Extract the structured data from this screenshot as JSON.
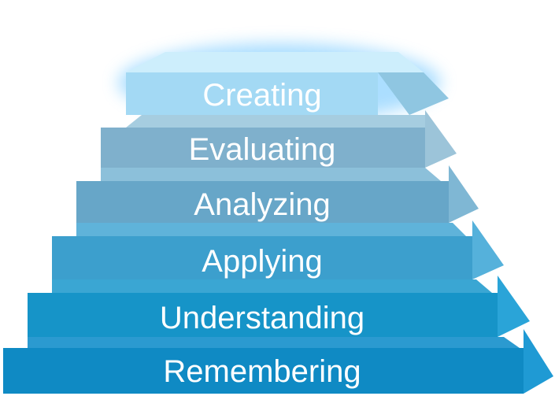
{
  "pyramid": {
    "levels": [
      {
        "label": "Creating",
        "face": "#a3d9f4",
        "top": "#cdeefc",
        "side": "#8fc6e1"
      },
      {
        "label": "Evaluating",
        "face": "#7fb0cc",
        "top": "#a6cde0",
        "side": "#9cc4d9"
      },
      {
        "label": "Analyzing",
        "face": "#67a6c8",
        "top": "#8cc0da",
        "side": "#7fb7d4"
      },
      {
        "label": "Applying",
        "face": "#3c9fcd",
        "top": "#5fb3da",
        "side": "#55b1db"
      },
      {
        "label": "Understanding",
        "face": "#1694c8",
        "top": "#3aa6d3",
        "side": "#2aa4d8"
      },
      {
        "label": "Remembering",
        "face": "#0f8ac4",
        "top": "#2b9ad0",
        "side": "#1f9ad4"
      }
    ]
  }
}
